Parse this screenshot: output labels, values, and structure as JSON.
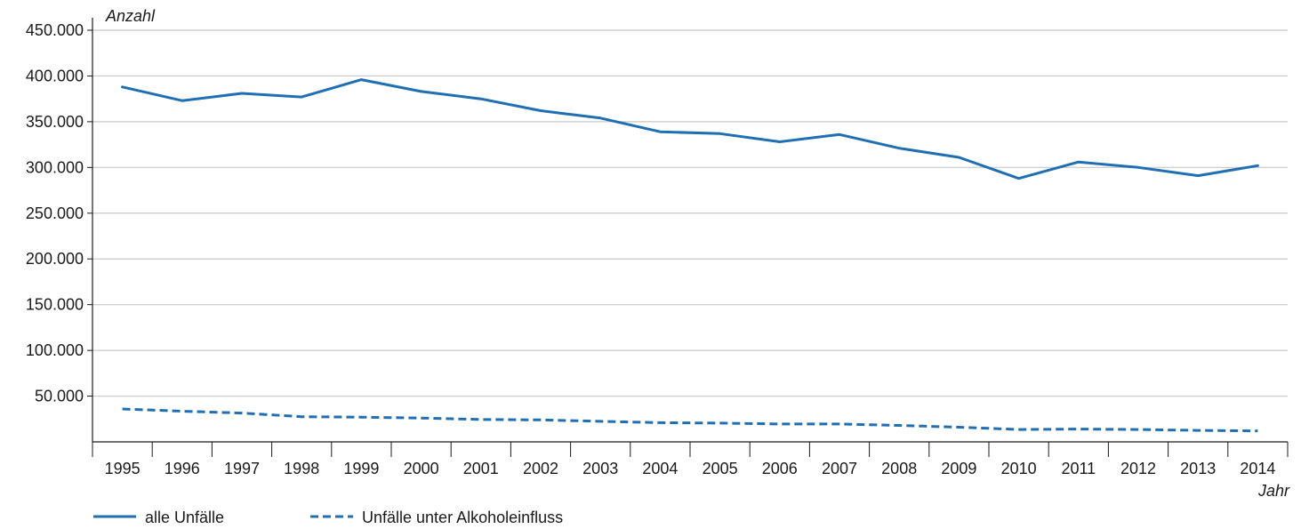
{
  "chart_data": {
    "type": "line",
    "ylabel": "Anzahl",
    "xlabel": "Jahr",
    "ylim": [
      0,
      450000
    ],
    "yticks": [
      50000,
      100000,
      150000,
      200000,
      250000,
      300000,
      350000,
      400000,
      450000
    ],
    "ytick_labels": [
      "50.000",
      "100.000",
      "150.000",
      "200.000",
      "250.000",
      "300.000",
      "350.000",
      "400.000",
      "450.000"
    ],
    "categories": [
      "1995",
      "1996",
      "1997",
      "1998",
      "1999",
      "2000",
      "2001",
      "2002",
      "2003",
      "2004",
      "2005",
      "2006",
      "2007",
      "2008",
      "2009",
      "2010",
      "2011",
      "2012",
      "2013",
      "2014"
    ],
    "grid": true,
    "legend_position": "bottom-left",
    "colors": {
      "line": "#1f6fb2",
      "grid": "#c8c8c8",
      "axis": "#1a1a1a"
    },
    "series": [
      {
        "name": "alle Unfälle",
        "style": "solid",
        "values": [
          388000,
          373000,
          381000,
          377000,
          396000,
          383000,
          375000,
          362000,
          354000,
          339000,
          337000,
          328000,
          336000,
          321000,
          311000,
          288000,
          306000,
          300000,
          291000,
          302000
        ]
      },
      {
        "name": "Unfälle unter Alkoholeinfluss",
        "style": "dashed",
        "values": [
          36000,
          33500,
          31500,
          27500,
          27000,
          26000,
          24500,
          24000,
          22500,
          21000,
          20500,
          19500,
          19500,
          18000,
          16000,
          13500,
          14000,
          13500,
          12500,
          12000
        ]
      }
    ]
  }
}
